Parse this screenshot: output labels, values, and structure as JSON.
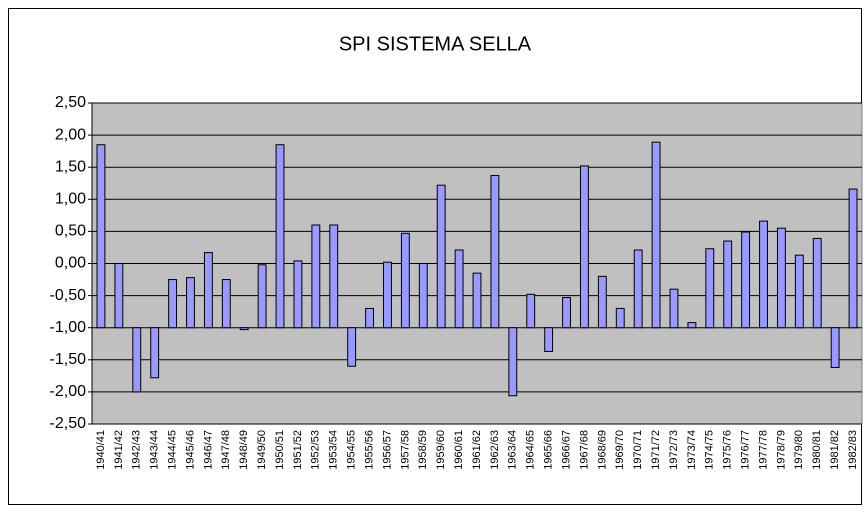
{
  "chart_data": {
    "type": "bar",
    "title": "SPI SISTEMA SELLA",
    "categories": [
      "1940/41",
      "1941/42",
      "1942/43",
      "1943/44",
      "1944/45",
      "1945/46",
      "1946/47",
      "1947/48",
      "1948/49",
      "1949/50",
      "1950/51",
      "1951/52",
      "1952/53",
      "1953/54",
      "1954/55",
      "1955/56",
      "1956/57",
      "1957/58",
      "1958/59",
      "1959/60",
      "1960/61",
      "1961/62",
      "1962/63",
      "1963/64",
      "1964/65",
      "1965/66",
      "1966/67",
      "1967/68",
      "1968/69",
      "1969/70",
      "1970/71",
      "1971/72",
      "1972/73",
      "1973/74",
      "1974/75",
      "1975/76",
      "1976/77",
      "1977/78",
      "1978/79",
      "1979/80",
      "1980/81",
      "1981/82",
      "1982/83"
    ],
    "values": [
      1.85,
      0.0,
      -2.0,
      -1.78,
      -0.25,
      -0.22,
      0.17,
      -0.25,
      -1.03,
      -0.02,
      1.85,
      0.04,
      0.6,
      0.6,
      -1.6,
      -0.7,
      0.02,
      0.47,
      0.0,
      1.22,
      0.21,
      -0.15,
      1.37,
      -2.06,
      -0.48,
      -1.37,
      -0.53,
      1.52,
      -0.2,
      -0.7,
      0.21,
      1.89,
      -0.4,
      -0.92,
      0.23,
      0.35,
      0.49,
      0.66,
      0.55,
      0.13,
      0.39,
      -1.62,
      1.16
    ],
    "color": "#9999ff",
    "baseline": -1,
    "ylim": [
      -2.5,
      2.5
    ],
    "yticks": [
      {
        "value": 2.5,
        "label": "2,50"
      },
      {
        "value": 2,
        "label": "2,00"
      },
      {
        "value": 1.5,
        "label": "1,50"
      },
      {
        "value": 1,
        "label": "1,00"
      },
      {
        "value": 0.5,
        "label": "0,50"
      },
      {
        "value": 0,
        "label": "0,00"
      },
      {
        "value": -0.5,
        "label": "-0,50"
      },
      {
        "value": -1,
        "label": "-1,00"
      },
      {
        "value": -1.5,
        "label": "-1,50"
      },
      {
        "value": -2,
        "label": "-2,00"
      },
      {
        "value": -2.5,
        "label": "-2,50"
      }
    ],
    "grid": true
  }
}
